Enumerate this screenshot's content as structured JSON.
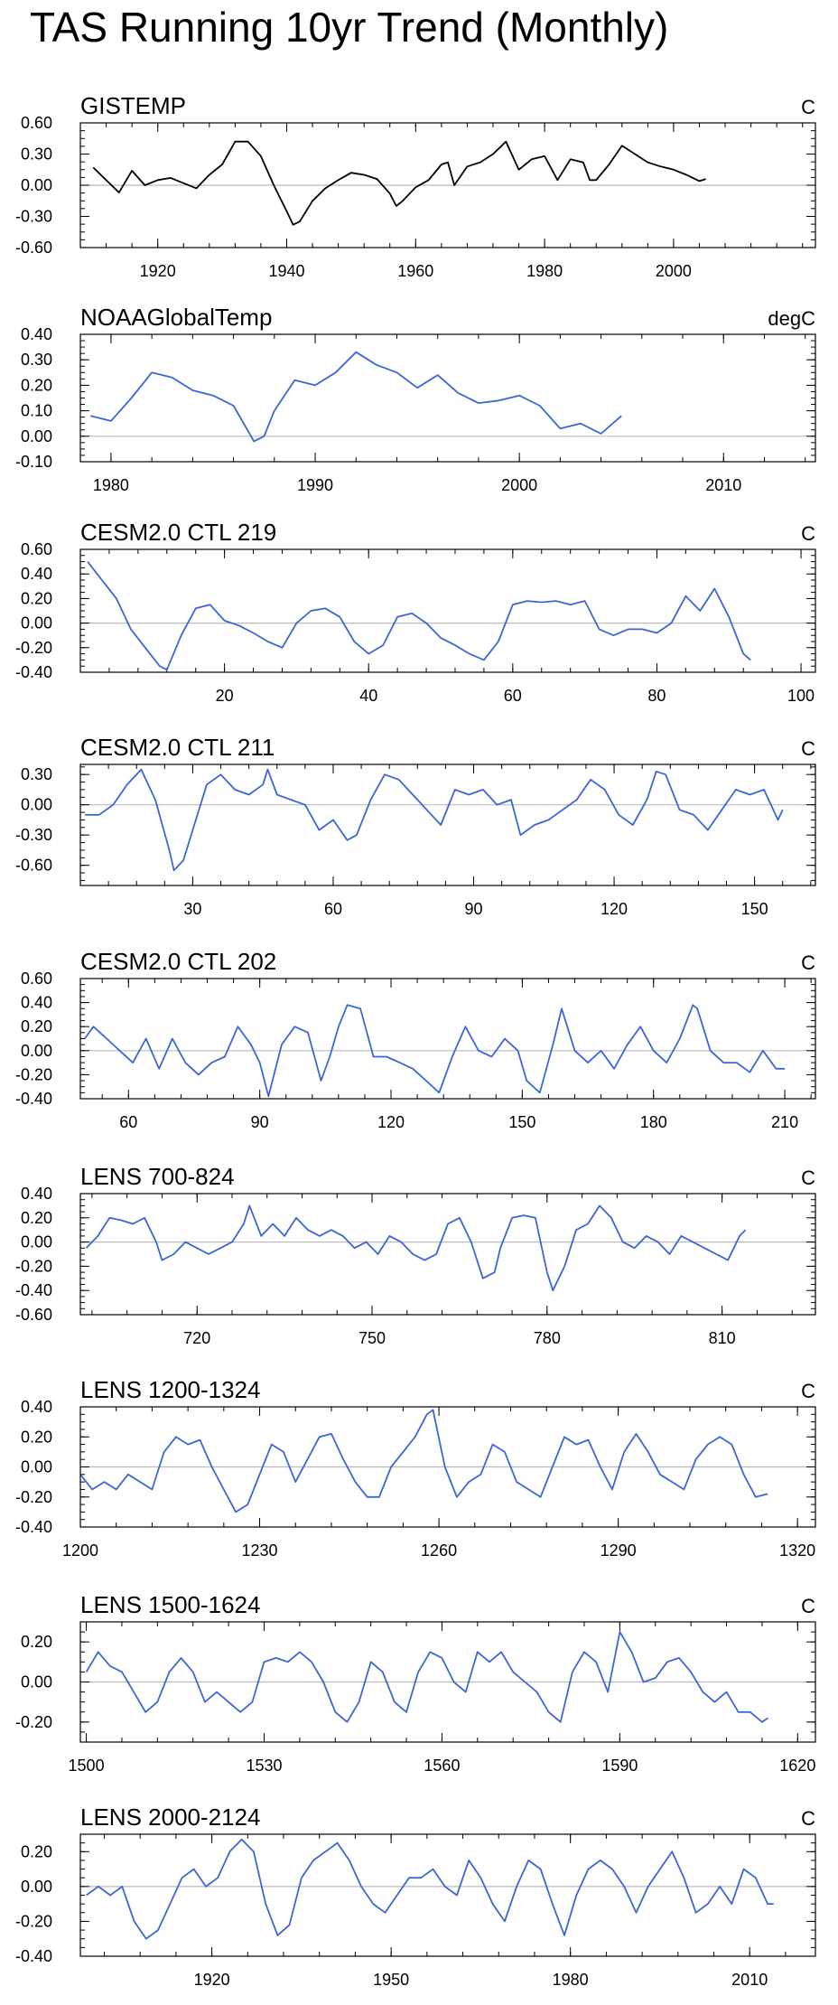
{
  "figure_title": "TAS Running 10yr Trend (Monthly)",
  "chart_data": [
    {
      "type": "line",
      "title": "GISTEMP",
      "units": "C",
      "color": "#000000",
      "xlim": [
        1908,
        2022
      ],
      "ylim": [
        -0.6,
        0.6
      ],
      "xticks": [
        1920,
        1940,
        1960,
        1980,
        2000
      ],
      "xtick_labels": [
        "1920",
        "1940",
        "1960",
        "1980",
        "2000"
      ],
      "yticks": [
        -0.6,
        -0.3,
        0.0,
        0.3,
        0.6
      ],
      "ytick_labels": [
        "-0.60",
        "-0.30",
        "0.00",
        "0.30",
        "0.60"
      ],
      "x": [
        1910,
        1912,
        1914,
        1916,
        1918,
        1920,
        1922,
        1924,
        1926,
        1928,
        1930,
        1932,
        1934,
        1936,
        1938,
        1940,
        1941,
        1942,
        1944,
        1946,
        1948,
        1950,
        1952,
        1954,
        1956,
        1957,
        1958,
        1960,
        1962,
        1964,
        1965,
        1966,
        1968,
        1970,
        1972,
        1974,
        1976,
        1978,
        1980,
        1982,
        1984,
        1986,
        1987,
        1988,
        1990,
        1992,
        1994,
        1996,
        1998,
        2000,
        2002,
        2004,
        2005
      ],
      "values": [
        0.17,
        0.05,
        -0.07,
        0.14,
        0.0,
        0.05,
        0.07,
        0.02,
        -0.03,
        0.1,
        0.2,
        0.42,
        0.42,
        0.28,
        0.0,
        -0.25,
        -0.38,
        -0.35,
        -0.15,
        -0.03,
        0.05,
        0.12,
        0.1,
        0.06,
        -0.08,
        -0.2,
        -0.15,
        -0.02,
        0.05,
        0.2,
        0.22,
        0.0,
        0.18,
        0.22,
        0.3,
        0.42,
        0.15,
        0.25,
        0.28,
        0.05,
        0.25,
        0.22,
        0.05,
        0.05,
        0.2,
        0.38,
        0.3,
        0.22,
        0.18,
        0.15,
        0.1,
        0.04,
        0.06
      ]
    },
    {
      "type": "line",
      "title": "NOAAGlobalTemp",
      "units": "degC",
      "color": "#3a66d8",
      "xlim": [
        1978.5,
        2014.5
      ],
      "ylim": [
        -0.1,
        0.4
      ],
      "xticks": [
        1980,
        1990,
        2000,
        2010
      ],
      "xtick_labels": [
        "1980",
        "1990",
        "2000",
        "2010"
      ],
      "yticks": [
        -0.1,
        0.0,
        0.1,
        0.2,
        0.3,
        0.4
      ],
      "ytick_labels": [
        "-0.10",
        "0.00",
        "0.10",
        "0.20",
        "0.30",
        "0.40"
      ],
      "x": [
        1979,
        1980,
        1981,
        1982,
        1983,
        1984,
        1985,
        1986,
        1987,
        1987.5,
        1988,
        1989,
        1990,
        1991,
        1992,
        1993,
        1994,
        1995,
        1996,
        1997,
        1998,
        1999,
        2000,
        2001,
        2002,
        2003,
        2004,
        2005
      ],
      "values": [
        0.08,
        0.06,
        0.15,
        0.25,
        0.23,
        0.18,
        0.16,
        0.12,
        -0.02,
        0.0,
        0.1,
        0.22,
        0.2,
        0.25,
        0.33,
        0.28,
        0.25,
        0.19,
        0.24,
        0.17,
        0.13,
        0.14,
        0.16,
        0.12,
        0.03,
        0.05,
        0.01,
        0.08
      ]
    },
    {
      "type": "line",
      "title": "CESM2.0 CTL 219",
      "units": "C",
      "color": "#3a66d8",
      "xlim": [
        0,
        102
      ],
      "ylim": [
        -0.4,
        0.6
      ],
      "xticks": [
        20,
        40,
        60,
        80,
        100
      ],
      "xtick_labels": [
        "20",
        "40",
        "60",
        "80",
        "100"
      ],
      "yticks": [
        -0.4,
        -0.2,
        0.0,
        0.2,
        0.4,
        0.6
      ],
      "ytick_labels": [
        "-0.40",
        "-0.20",
        "0.00",
        "0.20",
        "0.40",
        "0.60"
      ],
      "x": [
        1,
        3,
        5,
        7,
        9,
        11,
        12,
        14,
        16,
        18,
        20,
        22,
        24,
        26,
        28,
        30,
        32,
        34,
        36,
        38,
        40,
        42,
        44,
        46,
        48,
        50,
        52,
        54,
        56,
        58,
        60,
        62,
        64,
        66,
        68,
        70,
        72,
        74,
        76,
        78,
        80,
        82,
        84,
        86,
        88,
        90,
        92,
        93
      ],
      "values": [
        0.5,
        0.35,
        0.2,
        -0.05,
        -0.2,
        -0.35,
        -0.38,
        -0.1,
        0.12,
        0.15,
        0.02,
        -0.02,
        -0.08,
        -0.15,
        -0.2,
        0.0,
        0.1,
        0.12,
        0.05,
        -0.15,
        -0.25,
        -0.18,
        0.05,
        0.08,
        0.0,
        -0.12,
        -0.18,
        -0.25,
        -0.3,
        -0.15,
        0.15,
        0.18,
        0.17,
        0.18,
        0.15,
        0.18,
        -0.05,
        -0.1,
        -0.05,
        -0.05,
        -0.08,
        0.0,
        0.22,
        0.1,
        0.28,
        0.05,
        -0.25,
        -0.3
      ]
    },
    {
      "type": "line",
      "title": "CESM2.0 CTL 211",
      "units": "C",
      "color": "#3a66d8",
      "xlim": [
        6,
        163
      ],
      "ylim": [
        -0.8,
        0.4
      ],
      "xticks": [
        30,
        60,
        90,
        120,
        150
      ],
      "xtick_labels": [
        "30",
        "60",
        "90",
        "120",
        "150"
      ],
      "yticks": [
        -0.6,
        -0.3,
        0.0,
        0.3
      ],
      "ytick_labels": [
        "-0.60",
        "-0.30",
        "0.00",
        "0.30"
      ],
      "x": [
        7,
        10,
        13,
        16,
        19,
        22,
        25,
        26,
        28,
        30,
        33,
        36,
        39,
        42,
        45,
        46,
        48,
        51,
        54,
        57,
        60,
        63,
        65,
        68,
        71,
        74,
        77,
        80,
        83,
        86,
        89,
        92,
        95,
        98,
        100,
        103,
        106,
        109,
        112,
        115,
        118,
        121,
        124,
        127,
        129,
        131,
        134,
        137,
        140,
        143,
        146,
        149,
        152,
        155,
        156
      ],
      "values": [
        -0.1,
        -0.1,
        0.0,
        0.2,
        0.35,
        0.05,
        -0.45,
        -0.65,
        -0.55,
        -0.25,
        0.2,
        0.3,
        0.15,
        0.1,
        0.2,
        0.35,
        0.1,
        0.05,
        0.0,
        -0.25,
        -0.15,
        -0.35,
        -0.3,
        0.05,
        0.3,
        0.25,
        0.1,
        -0.05,
        -0.2,
        0.15,
        0.1,
        0.15,
        0.0,
        0.05,
        -0.3,
        -0.2,
        -0.15,
        -0.05,
        0.05,
        0.25,
        0.15,
        -0.1,
        -0.2,
        0.05,
        0.33,
        0.3,
        -0.05,
        -0.1,
        -0.25,
        -0.05,
        0.15,
        0.1,
        0.15,
        -0.15,
        -0.05
      ]
    },
    {
      "type": "line",
      "title": "CESM2.0 CTL 202",
      "units": "C",
      "color": "#3a66d8",
      "xlim": [
        49,
        217
      ],
      "ylim": [
        -0.4,
        0.6
      ],
      "xticks": [
        60,
        90,
        120,
        150,
        180,
        210
      ],
      "xtick_labels": [
        "60",
        "90",
        "120",
        "150",
        "180",
        "210"
      ],
      "yticks": [
        -0.4,
        -0.2,
        0.0,
        0.2,
        0.4,
        0.6
      ],
      "ytick_labels": [
        "-0.40",
        "-0.20",
        "0.00",
        "0.20",
        "0.40",
        "0.60"
      ],
      "x": [
        50,
        52,
        55,
        58,
        61,
        64,
        67,
        70,
        73,
        76,
        79,
        82,
        85,
        88,
        90,
        92,
        95,
        98,
        101,
        104,
        106,
        108,
        110,
        113,
        116,
        119,
        122,
        125,
        128,
        131,
        134,
        137,
        140,
        143,
        146,
        149,
        151,
        154,
        157,
        159,
        162,
        165,
        168,
        171,
        174,
        177,
        180,
        183,
        186,
        189,
        190,
        193,
        196,
        199,
        202,
        205,
        208,
        210
      ],
      "values": [
        0.1,
        0.2,
        0.1,
        0.0,
        -0.1,
        0.1,
        -0.15,
        0.1,
        -0.1,
        -0.2,
        -0.1,
        -0.05,
        0.2,
        0.05,
        -0.1,
        -0.38,
        0.05,
        0.2,
        0.15,
        -0.25,
        -0.05,
        0.2,
        0.38,
        0.35,
        -0.05,
        -0.05,
        -0.1,
        -0.15,
        -0.25,
        -0.35,
        -0.05,
        0.2,
        0.0,
        -0.05,
        0.1,
        0.0,
        -0.25,
        -0.35,
        0.05,
        0.35,
        0.0,
        -0.1,
        0.0,
        -0.15,
        0.05,
        0.2,
        0.0,
        -0.1,
        0.1,
        0.38,
        0.35,
        0.0,
        -0.1,
        -0.1,
        -0.18,
        0.0,
        -0.15,
        -0.15
      ]
    },
    {
      "type": "line",
      "title": "LENS 700-824",
      "units": "C",
      "color": "#3a66d8",
      "xlim": [
        700,
        826
      ],
      "ylim": [
        -0.6,
        0.4
      ],
      "xticks": [
        720,
        750,
        780,
        810
      ],
      "xtick_labels": [
        "720",
        "750",
        "780",
        "810"
      ],
      "yticks": [
        -0.6,
        -0.4,
        -0.2,
        0.0,
        0.2,
        0.4
      ],
      "ytick_labels": [
        "-0.60",
        "-0.40",
        "-0.20",
        "0.00",
        "0.20",
        "0.40"
      ],
      "x": [
        701,
        703,
        705,
        707,
        709,
        711,
        713,
        714,
        716,
        718,
        720,
        722,
        724,
        726,
        728,
        729,
        731,
        733,
        735,
        737,
        739,
        741,
        743,
        745,
        747,
        749,
        751,
        753,
        755,
        757,
        759,
        761,
        763,
        765,
        767,
        769,
        771,
        772,
        774,
        776,
        778,
        780,
        781,
        783,
        785,
        787,
        789,
        791,
        793,
        795,
        797,
        799,
        801,
        803,
        805,
        807,
        809,
        811,
        813,
        814
      ],
      "values": [
        -0.05,
        0.05,
        0.2,
        0.18,
        0.15,
        0.2,
        0.0,
        -0.15,
        -0.1,
        0.0,
        -0.05,
        -0.1,
        -0.05,
        0.0,
        0.15,
        0.3,
        0.05,
        0.15,
        0.05,
        0.2,
        0.1,
        0.05,
        0.1,
        0.05,
        -0.05,
        0.0,
        -0.1,
        0.05,
        0.0,
        -0.1,
        -0.15,
        -0.1,
        0.15,
        0.2,
        0.0,
        -0.3,
        -0.25,
        -0.05,
        0.2,
        0.22,
        0.2,
        -0.25,
        -0.4,
        -0.2,
        0.1,
        0.15,
        0.3,
        0.2,
        0.0,
        -0.05,
        0.05,
        0.0,
        -0.1,
        0.05,
        0.0,
        -0.05,
        -0.1,
        -0.15,
        0.05,
        0.1
      ]
    },
    {
      "type": "line",
      "title": "LENS 1200-1324",
      "units": "C",
      "color": "#3a66d8",
      "xlim": [
        1200,
        1323
      ],
      "ylim": [
        -0.4,
        0.4
      ],
      "xticks": [
        1200,
        1230,
        1260,
        1290,
        1320
      ],
      "xtick_labels": [
        "1200",
        "1230",
        "1260",
        "1290",
        "1320"
      ],
      "yticks": [
        -0.4,
        -0.2,
        0.0,
        0.2,
        0.4
      ],
      "ytick_labels": [
        "-0.40",
        "-0.20",
        "0.00",
        "0.20",
        "0.40"
      ],
      "x": [
        1200,
        1202,
        1204,
        1206,
        1208,
        1210,
        1212,
        1214,
        1216,
        1218,
        1220,
        1222,
        1224,
        1226,
        1228,
        1230,
        1232,
        1234,
        1236,
        1238,
        1240,
        1242,
        1244,
        1246,
        1248,
        1250,
        1252,
        1254,
        1256,
        1258,
        1259,
        1261,
        1263,
        1265,
        1267,
        1269,
        1271,
        1273,
        1275,
        1277,
        1279,
        1281,
        1283,
        1285,
        1287,
        1289,
        1291,
        1293,
        1295,
        1297,
        1299,
        1301,
        1303,
        1305,
        1307,
        1309,
        1311,
        1313,
        1315
      ],
      "values": [
        -0.05,
        -0.15,
        -0.1,
        -0.15,
        -0.05,
        -0.1,
        -0.15,
        0.1,
        0.2,
        0.15,
        0.18,
        0.0,
        -0.15,
        -0.3,
        -0.25,
        -0.05,
        0.15,
        0.1,
        -0.1,
        0.05,
        0.2,
        0.22,
        0.05,
        -0.1,
        -0.2,
        -0.2,
        0.0,
        0.1,
        0.2,
        0.35,
        0.38,
        0.0,
        -0.2,
        -0.1,
        -0.05,
        0.15,
        0.1,
        -0.1,
        -0.15,
        -0.2,
        0.0,
        0.2,
        0.15,
        0.18,
        0.0,
        -0.15,
        0.1,
        0.22,
        0.1,
        -0.05,
        -0.1,
        -0.15,
        0.05,
        0.15,
        0.2,
        0.15,
        -0.05,
        -0.2,
        -0.18
      ]
    },
    {
      "type": "line",
      "title": "LENS 1500-1624",
      "units": "C",
      "color": "#3a66d8",
      "xlim": [
        1499,
        1623
      ],
      "ylim": [
        -0.3,
        0.3
      ],
      "xticks": [
        1500,
        1530,
        1560,
        1590,
        1620
      ],
      "xtick_labels": [
        "1500",
        "1530",
        "1560",
        "1590",
        "1620"
      ],
      "yticks": [
        -0.2,
        0.0,
        0.2
      ],
      "ytick_labels": [
        "-0.20",
        "0.00",
        "0.20"
      ],
      "x": [
        1500,
        1502,
        1504,
        1506,
        1508,
        1510,
        1512,
        1514,
        1516,
        1518,
        1520,
        1522,
        1524,
        1526,
        1528,
        1530,
        1532,
        1534,
        1536,
        1538,
        1540,
        1542,
        1544,
        1546,
        1548,
        1550,
        1552,
        1554,
        1556,
        1558,
        1560,
        1562,
        1564,
        1566,
        1568,
        1570,
        1572,
        1574,
        1576,
        1578,
        1580,
        1582,
        1584,
        1586,
        1588,
        1590,
        1592,
        1594,
        1596,
        1598,
        1600,
        1602,
        1604,
        1606,
        1608,
        1610,
        1612,
        1614,
        1615
      ],
      "values": [
        0.05,
        0.15,
        0.08,
        0.05,
        -0.05,
        -0.15,
        -0.1,
        0.05,
        0.12,
        0.05,
        -0.1,
        -0.05,
        -0.1,
        -0.15,
        -0.1,
        0.1,
        0.12,
        0.1,
        0.15,
        0.1,
        0.0,
        -0.15,
        -0.2,
        -0.1,
        0.1,
        0.05,
        -0.1,
        -0.15,
        0.05,
        0.15,
        0.12,
        0.0,
        -0.05,
        0.15,
        0.1,
        0.15,
        0.05,
        0.0,
        -0.05,
        -0.15,
        -0.2,
        0.05,
        0.15,
        0.1,
        -0.05,
        0.25,
        0.15,
        0.0,
        0.02,
        0.1,
        0.12,
        0.05,
        -0.05,
        -0.1,
        -0.05,
        -0.15,
        -0.15,
        -0.2,
        -0.18
      ]
    },
    {
      "type": "line",
      "title": "LENS 2000-2124",
      "units": "C",
      "color": "#3a66d8",
      "xlim": [
        1898,
        2021
      ],
      "ylim": [
        -0.4,
        0.3
      ],
      "xticks": [
        1920,
        1950,
        1980,
        2010
      ],
      "xtick_labels": [
        "1920",
        "1950",
        "1980",
        "2010"
      ],
      "yticks": [
        -0.4,
        -0.2,
        0.0,
        0.2
      ],
      "ytick_labels": [
        "-0.40",
        "-0.20",
        "0.00",
        "0.20"
      ],
      "x": [
        1899,
        1901,
        1903,
        1905,
        1907,
        1909,
        1911,
        1913,
        1915,
        1917,
        1919,
        1921,
        1923,
        1925,
        1927,
        1929,
        1931,
        1933,
        1935,
        1937,
        1939,
        1941,
        1943,
        1945,
        1947,
        1949,
        1951,
        1953,
        1955,
        1957,
        1959,
        1961,
        1963,
        1965,
        1967,
        1969,
        1971,
        1973,
        1975,
        1977,
        1979,
        1981,
        1983,
        1985,
        1987,
        1989,
        1991,
        1993,
        1995,
        1997,
        1999,
        2001,
        2003,
        2005,
        2007,
        2009,
        2011,
        2013,
        2014
      ],
      "values": [
        -0.05,
        0.0,
        -0.05,
        0.0,
        -0.2,
        -0.3,
        -0.25,
        -0.1,
        0.05,
        0.1,
        0.0,
        0.05,
        0.2,
        0.27,
        0.2,
        -0.1,
        -0.28,
        -0.22,
        0.05,
        0.15,
        0.2,
        0.25,
        0.15,
        0.0,
        -0.1,
        -0.15,
        -0.05,
        0.05,
        0.05,
        0.1,
        0.0,
        -0.05,
        0.15,
        0.05,
        -0.1,
        -0.2,
        0.0,
        0.15,
        0.1,
        -0.1,
        -0.28,
        -0.05,
        0.1,
        0.15,
        0.1,
        0.0,
        -0.15,
        0.0,
        0.1,
        0.2,
        0.05,
        -0.15,
        -0.1,
        0.0,
        -0.1,
        0.1,
        0.05,
        -0.1,
        -0.1
      ]
    }
  ]
}
